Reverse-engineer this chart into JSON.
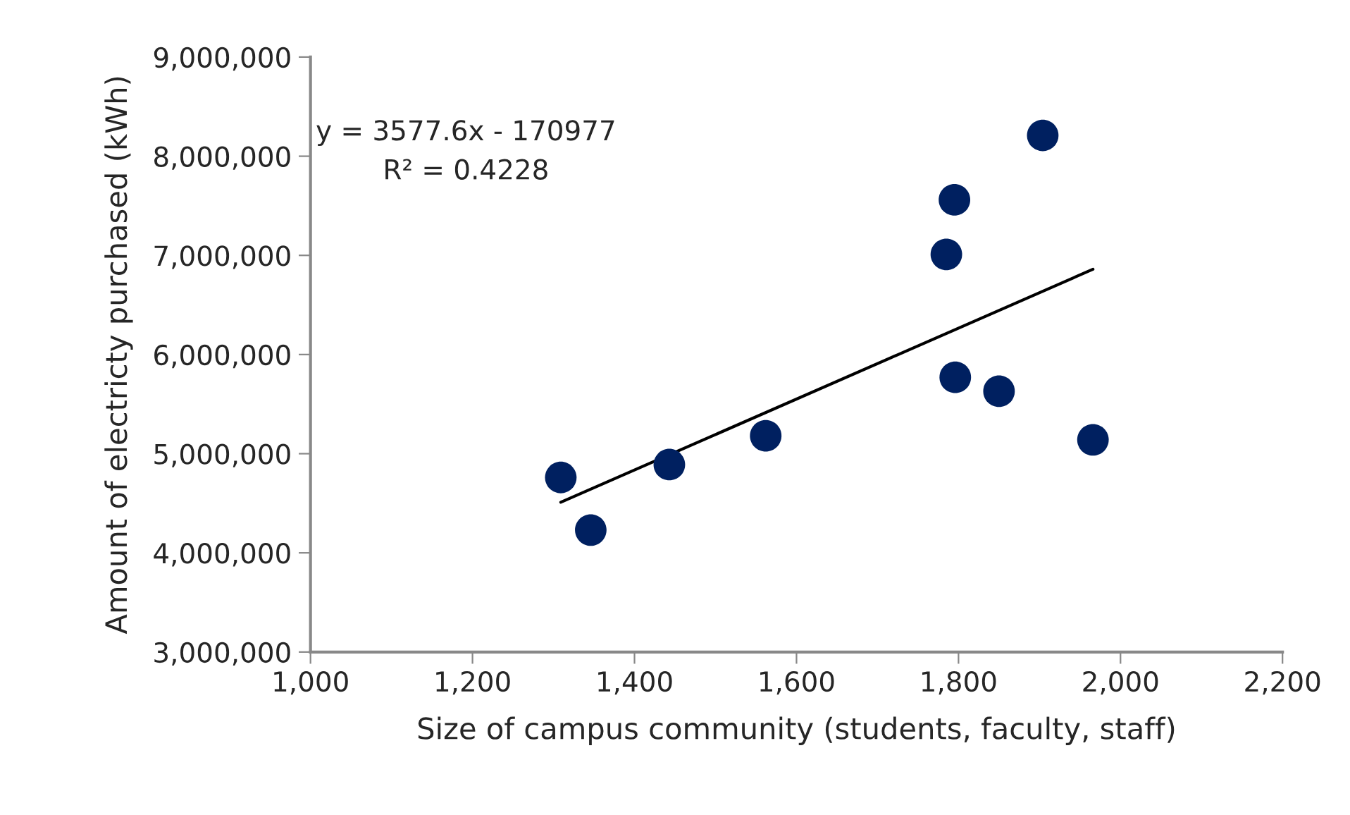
{
  "chart_data": {
    "type": "scatter",
    "xlabel": "Size of campus community (students, faculty, staff)",
    "ylabel": "Amount of electricty purchased (kWh)",
    "x": [
      1309,
      1346,
      1443,
      1562,
      1785,
      1795,
      1796,
      1850,
      1904,
      1966
    ],
    "series": [
      {
        "color": "#002060",
        "marker": "circle",
        "values": [
          4760000,
          4230000,
          4890000,
          5180000,
          7010000,
          7560000,
          5770000,
          5630000,
          8210000,
          5140000
        ]
      },
      {
        "type": "line",
        "color": "#000000",
        "line_style": "solid",
        "marker": "none",
        "x": [
          1309,
          1966
        ],
        "values": [
          4510000,
          6860000
        ]
      }
    ],
    "annotations": [
      "y = 3577.6x - 170977\nR² = 0.4228"
    ],
    "xlim": [
      1000,
      2200
    ],
    "ylim": [
      3000000,
      9000000
    ],
    "xticks": [
      {
        "value": 1000,
        "label": "1,000"
      },
      {
        "value": 1200,
        "label": "1,200"
      },
      {
        "value": 1400,
        "label": "1,400"
      },
      {
        "value": 1600,
        "label": "1,600"
      },
      {
        "value": 1800,
        "label": "1,800"
      },
      {
        "value": 2000,
        "label": "2,000"
      },
      {
        "value": 2200,
        "label": "2,200"
      }
    ],
    "yticks": [
      {
        "value": 3000000,
        "label": "3,000,000"
      },
      {
        "value": 4000000,
        "label": "4,000,000"
      },
      {
        "value": 5000000,
        "label": "5,000,000"
      },
      {
        "value": 6000000,
        "label": "6,000,000"
      },
      {
        "value": 7000000,
        "label": "7,000,000"
      },
      {
        "value": 8000000,
        "label": "8,000,000"
      },
      {
        "value": 9000000,
        "label": "9,000,000"
      }
    ],
    "grid": false,
    "legend": false
  }
}
